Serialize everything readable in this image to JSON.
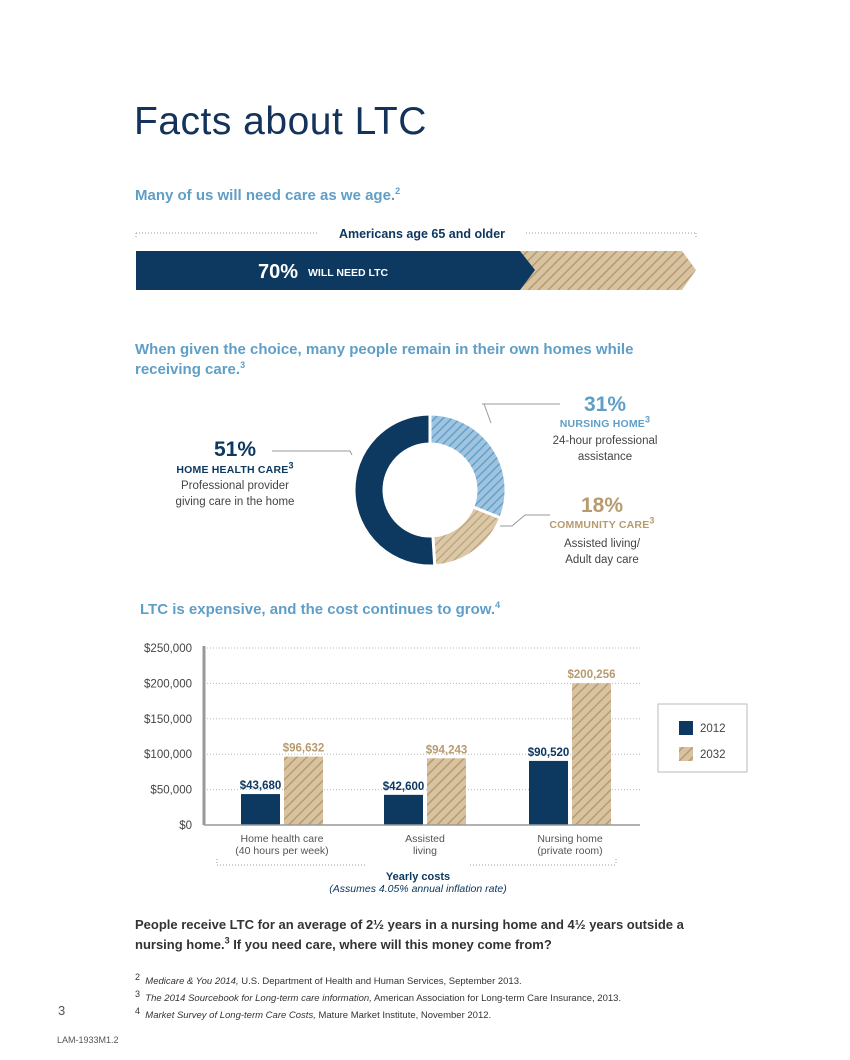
{
  "page": {
    "title": "Facts about LTC",
    "page_number": "3",
    "code": "LAM-1933M1.2"
  },
  "section1": {
    "heading": "Many of us will need care as we age.",
    "heading_sup": "2",
    "bar_caption": "Americans age 65 and older",
    "percent": "70%",
    "percent_label": "WILL NEED LTC",
    "value": 70
  },
  "section2": {
    "heading": "When given the choice, many people remain in their own homes while receiving care.",
    "heading_sup": "3",
    "home_health": {
      "pct": "51%",
      "name": "HOME HEALTH CARE",
      "sup": "3",
      "desc1": "Professional provider",
      "desc2": "giving care in the home"
    },
    "nursing_home": {
      "pct": "31%",
      "name": "NURSING HOME",
      "sup": "3",
      "desc1": "24-hour professional",
      "desc2": "assistance"
    },
    "community": {
      "pct": "18%",
      "name": "COMMUNITY CARE",
      "sup": "3",
      "desc1": "Assisted living/",
      "desc2": "Adult day care"
    }
  },
  "section3": {
    "heading": "LTC is expensive, and the cost continues to grow.",
    "heading_sup": "4"
  },
  "chart_data": {
    "type": "bar",
    "categories": [
      "Home health care (40 hours per week)",
      "Assisted living",
      "Nursing home (private room)"
    ],
    "category_lines": [
      [
        "Home health care",
        "(40 hours per week)"
      ],
      [
        "Assisted",
        "living"
      ],
      [
        "Nursing home",
        "(private room)"
      ]
    ],
    "series": [
      {
        "name": "2012",
        "values": [
          43680,
          42600,
          90520
        ],
        "labels": [
          "$43,680",
          "$42,600",
          "$90,520"
        ],
        "color": "#0d3860"
      },
      {
        "name": "2032",
        "values": [
          96632,
          94243,
          200256
        ],
        "labels": [
          "$96,632",
          "$94,243",
          "$200,256"
        ],
        "color": "#c9ae84"
      }
    ],
    "ylim": [
      0,
      250000
    ],
    "yticks": [
      0,
      50000,
      100000,
      150000,
      200000,
      250000
    ],
    "ytick_labels": [
      "$0",
      "$50,000",
      "$100,000",
      "$150,000",
      "$200,000",
      "$250,000"
    ],
    "xlabel": "Yearly costs",
    "xlabel_note": "(Assumes 4.05% annual inflation rate)",
    "grid": true,
    "legend": "right"
  },
  "closing": {
    "line1": "People receive LTC for an average of 2½ years in a nursing home and 4½ years outside a",
    "line2a": "nursing home.",
    "line2_sup": "3",
    "line2b": " If you need care, where will this money come from?"
  },
  "footnotes": [
    {
      "num": "2",
      "italic": "Medicare & You 2014,",
      "rest": " U.S. Department of Health and Human Services, September 2013."
    },
    {
      "num": "3",
      "italic": "The 2014 Sourcebook for Long-term care information,",
      "rest": " American Association for Long-term Care Insurance, 2013."
    },
    {
      "num": "4",
      "italic": "Market Survey of Long-term Care Costs,",
      "rest": " Mature Market Institute, November 2012."
    }
  ],
  "colors": {
    "navy": "#0d3860",
    "tan": "#c9ae84",
    "blue": "#6aa3cc",
    "heading_blue": "#5f9ec7"
  }
}
